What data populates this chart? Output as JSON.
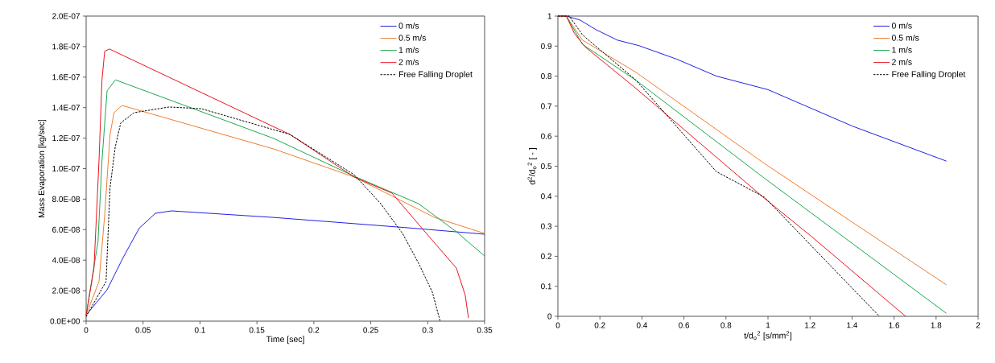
{
  "chart_data": [
    {
      "type": "line",
      "xlabel": "Time [sec]",
      "ylabel": "Mass Evaporation [kg/sec]",
      "legend": "top right",
      "xlim": [
        0,
        0.35
      ],
      "xticks": [
        0,
        0.05,
        0.1,
        0.15,
        0.2,
        0.25,
        0.3,
        0.35
      ],
      "ylim": [
        0,
        2e-07
      ],
      "yticks": [
        {
          "value": 0,
          "label": "0.0E+00"
        },
        {
          "value": 2e-08,
          "label": "2.0E-08"
        },
        {
          "value": 4e-08,
          "label": "4.0E-08"
        },
        {
          "value": 6e-08,
          "label": "6.0E-08"
        },
        {
          "value": 8e-08,
          "label": "8.0E-08"
        },
        {
          "value": 1e-07,
          "label": "1.0E-07"
        },
        {
          "value": 1.2e-07,
          "label": "1.2E-07"
        },
        {
          "value": 1.4e-07,
          "label": "1.4E-07"
        },
        {
          "value": 1.6e-07,
          "label": "1.6E-07"
        },
        {
          "value": 1.8e-07,
          "label": "1.8E-07"
        },
        {
          "value": 2e-07,
          "label": "2.0E-07"
        }
      ],
      "series": [
        {
          "name": "0 m/s",
          "color": "#1f1fe6",
          "x": [
            0,
            0.0184,
            0.0325,
            0.0467,
            0.0608,
            0.0749,
            0.1647,
            0.2828,
            0.35
          ],
          "values": [
            4e-09,
            2.06e-08,
            4.17e-08,
            6.1e-08,
            7.07e-08,
            7.23e-08,
            6.8e-08,
            6.12e-08,
            5.7e-08
          ]
        },
        {
          "name": "0.5 m/s",
          "color": "#ed7d31",
          "x": [
            0,
            0.0113,
            0.0163,
            0.021,
            0.0245,
            0.0316,
            0.1647,
            0.2354,
            0.3061,
            0.35
          ],
          "values": [
            4e-09,
            2.6e-08,
            6.97e-08,
            1.224e-07,
            1.367e-07,
            1.414e-07,
            1.129e-07,
            9.45e-08,
            6.8e-08,
            5.75e-08
          ]
        },
        {
          "name": "1 m/s",
          "color": "#1aa84f",
          "x": [
            0,
            0.0104,
            0.0139,
            0.0184,
            0.0257,
            0.1647,
            0.2354,
            0.292,
            0.3252,
            0.35
          ],
          "values": [
            4e-09,
            5.2e-08,
            1.05e-07,
            1.51e-07,
            1.582e-07,
            1.198e-07,
            9.5e-08,
            7.7e-08,
            5.86e-08,
            4.27e-08
          ]
        },
        {
          "name": "2 m/s",
          "color": "#e8141e",
          "x": [
            0,
            0.0069,
            0.0113,
            0.0139,
            0.0163,
            0.0205,
            0.0658,
            0.179,
            0.2354,
            0.2687,
            0.297,
            0.3252,
            0.333,
            0.3358
          ],
          "values": [
            4e-09,
            3.48e-08,
            1.05e-07,
            1.58e-07,
            1.77e-07,
            1.784e-07,
            1.624e-07,
            1.224e-07,
            9.45e-08,
            8.39e-08,
            5.91e-08,
            3.48e-08,
            1.69e-08,
            2e-09
          ]
        },
        {
          "name": "Free Falling Droplet",
          "color": "#000000",
          "line_style": "dashed",
          "x": [
            0,
            0.0175,
            0.021,
            0.0255,
            0.0304,
            0.0422,
            0.0728,
            0.1011,
            0.179,
            0.2354,
            0.2588,
            0.2779,
            0.292,
            0.3041,
            0.3109
          ],
          "values": [
            3e-09,
            2.6e-08,
            8.76e-08,
            1.14e-07,
            1.3e-07,
            1.367e-07,
            1.404e-07,
            1.393e-07,
            1.224e-07,
            9.6e-08,
            7.7e-08,
            5.75e-08,
            3.8e-08,
            1.9e-08,
            0
          ]
        }
      ]
    },
    {
      "type": "line",
      "xlabel": "t/d$_{o}$$^{2}$ [s/mm$^{2}$]",
      "ylabel": "d$^{2}$/d$_{o}$$^{2}$ [ - ]",
      "legend": "top right",
      "xlim": [
        0,
        2
      ],
      "xticks": [
        0,
        0.2,
        0.4,
        0.6,
        0.8,
        1,
        1.2,
        1.4,
        1.6,
        1.8,
        2
      ],
      "ylim": [
        0,
        1
      ],
      "yticks": [
        0,
        0.1,
        0.2,
        0.3,
        0.4,
        0.5,
        0.6,
        0.7,
        0.8,
        0.9,
        1
      ],
      "series": [
        {
          "name": "0 m/s",
          "color": "#1f1fe6",
          "x": [
            0,
            0.04,
            0.105,
            0.181,
            0.283,
            0.384,
            0.564,
            0.755,
            1.0,
            1.4,
            1.849
          ],
          "values": [
            1,
            1,
            0.987,
            0.955,
            0.92,
            0.902,
            0.857,
            0.8,
            0.755,
            0.634,
            0.517
          ]
        },
        {
          "name": "0.5 m/s",
          "color": "#ed7d31",
          "x": [
            0,
            0.04,
            0.117,
            0.372,
            0.983,
            1.4,
            1.849
          ],
          "values": [
            1,
            1,
            0.92,
            0.8125,
            0.509,
            0.314,
            0.105
          ]
        },
        {
          "name": "1 m/s",
          "color": "#1aa84f",
          "x": [
            0,
            0.04,
            0.117,
            0.372,
            0.983,
            1.849
          ],
          "values": [
            1,
            1,
            0.906,
            0.786,
            0.46,
            0.01
          ]
        },
        {
          "name": "2 m/s",
          "color": "#e8141e",
          "x": [
            0,
            0.04,
            0.079,
            0.13,
            0.372,
            0.983,
            1.2,
            1.655
          ],
          "values": [
            1,
            1,
            0.942,
            0.897,
            0.759,
            0.393,
            0.27,
            0
          ]
        },
        {
          "name": "Free Falling Droplet",
          "color": "#000000",
          "line_style": "dashed",
          "x": [
            0,
            0.054,
            0.117,
            0.372,
            0.754,
            0.983,
            1.53
          ],
          "values": [
            1,
            1,
            0.9375,
            0.786,
            0.482,
            0.397,
            0
          ]
        }
      ]
    }
  ]
}
